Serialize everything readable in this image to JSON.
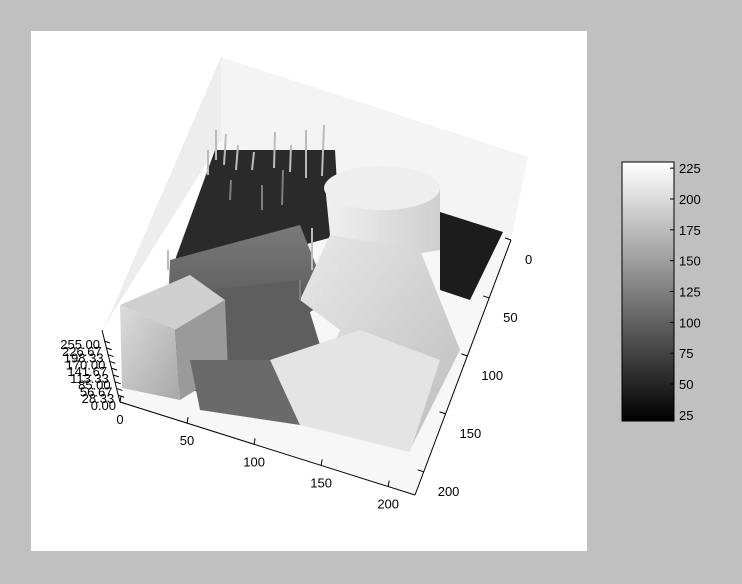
{
  "chart_data": {
    "type": "surface-3d",
    "title": "",
    "xlabel": "",
    "ylabel": "",
    "zlabel": "",
    "colormap": "gray",
    "x_ticks": [
      "0",
      "50",
      "100",
      "150",
      "200"
    ],
    "y_ticks": [
      "0",
      "50",
      "100",
      "150",
      "200"
    ],
    "z_ticks": [
      "0.00",
      "28.33",
      "56.67",
      "85.00",
      "113.33",
      "141.67",
      "170.00",
      "198.33",
      "226.67",
      "255.00"
    ],
    "x_range": [
      0,
      220
    ],
    "y_range": [
      0,
      220
    ],
    "z_range": [
      0,
      255
    ],
    "colorbar": {
      "ticks": [
        "25",
        "50",
        "75",
        "100",
        "125",
        "150",
        "175",
        "200",
        "225"
      ],
      "range": [
        20,
        230
      ]
    },
    "colors": {
      "figure_background": "#c0c0c0",
      "axes_background": "#ffffff",
      "pane": "#f2f2f2"
    }
  }
}
